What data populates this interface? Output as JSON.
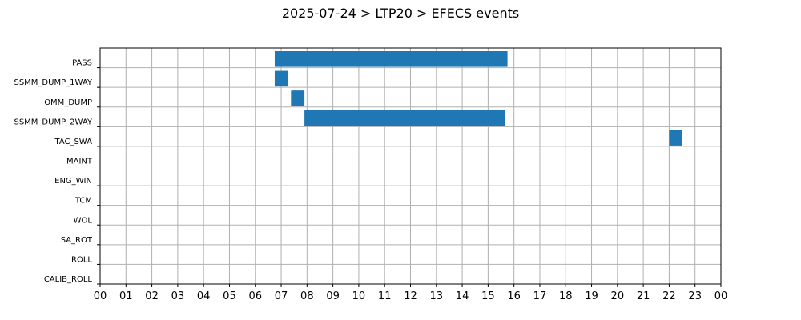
{
  "chart_data": {
    "type": "bar",
    "orientation": "horizontal",
    "title": "2025-07-24 > LTP20 > EFECS events",
    "xlabel": "",
    "ylabel": "",
    "xlim": [
      0,
      24
    ],
    "x_tick_labels": [
      "00",
      "01",
      "02",
      "03",
      "04",
      "05",
      "06",
      "07",
      "08",
      "09",
      "10",
      "11",
      "12",
      "13",
      "14",
      "15",
      "16",
      "17",
      "18",
      "19",
      "20",
      "21",
      "22",
      "23",
      "00"
    ],
    "categories": [
      "PASS",
      "SSMM_DUMP_1WAY",
      "OMM_DUMP",
      "SSMM_DUMP_2WAY",
      "TAC_SWA",
      "MAINT",
      "ENG_WIN",
      "TCM",
      "WOL",
      "SA_ROT",
      "ROLL",
      "CALIB_ROLL"
    ],
    "events": [
      {
        "category": "PASS",
        "start": 6.75,
        "end": 15.75
      },
      {
        "category": "SSMM_DUMP_1WAY",
        "start": 6.75,
        "end": 7.25
      },
      {
        "category": "OMM_DUMP",
        "start": 7.38,
        "end": 7.9
      },
      {
        "category": "SSMM_DUMP_2WAY",
        "start": 7.9,
        "end": 15.67
      },
      {
        "category": "TAC_SWA",
        "start": 22.0,
        "end": 22.5
      }
    ],
    "bar_color": "#1f77b4",
    "grid": true,
    "legend": "none"
  }
}
